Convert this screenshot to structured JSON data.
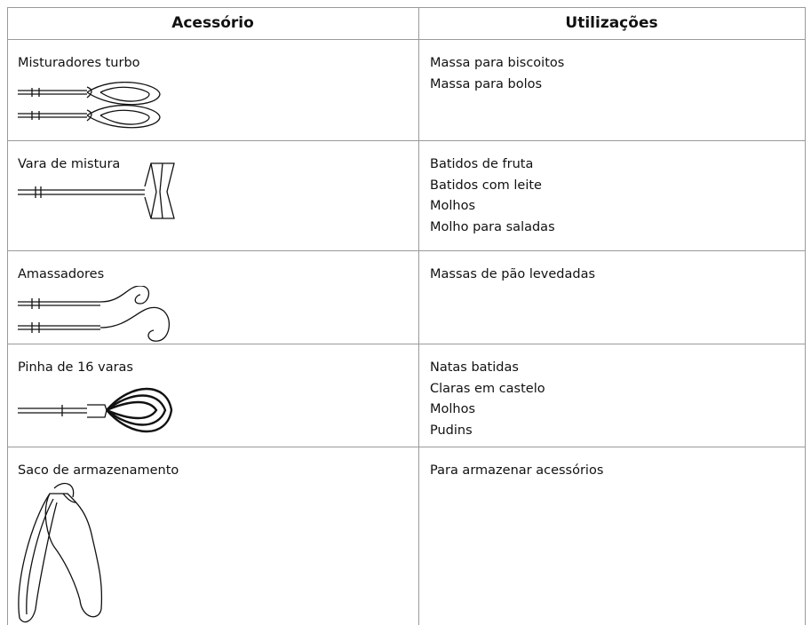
{
  "table": {
    "headers": [
      "Acessório",
      "Utilizações"
    ],
    "rows": [
      {
        "accessory": "Misturadores turbo",
        "uses": [
          "Massa para biscoitos",
          "Massa para bolos"
        ]
      },
      {
        "accessory": "Vara de mistura",
        "uses": [
          "Batidos de fruta",
          "Batidos com leite",
          "Molhos",
          "Molho para saladas"
        ]
      },
      {
        "accessory": "Amassadores",
        "uses": [
          "Massas de pão levedadas"
        ]
      },
      {
        "accessory": "Pinha de 16 varas",
        "uses": [
          "Natas batidas",
          "Claras em castelo",
          "Molhos",
          "Pudins"
        ]
      },
      {
        "accessory": "Saco de armazenamento",
        "uses": [
          "Para armazenar acessórios"
        ]
      }
    ]
  }
}
